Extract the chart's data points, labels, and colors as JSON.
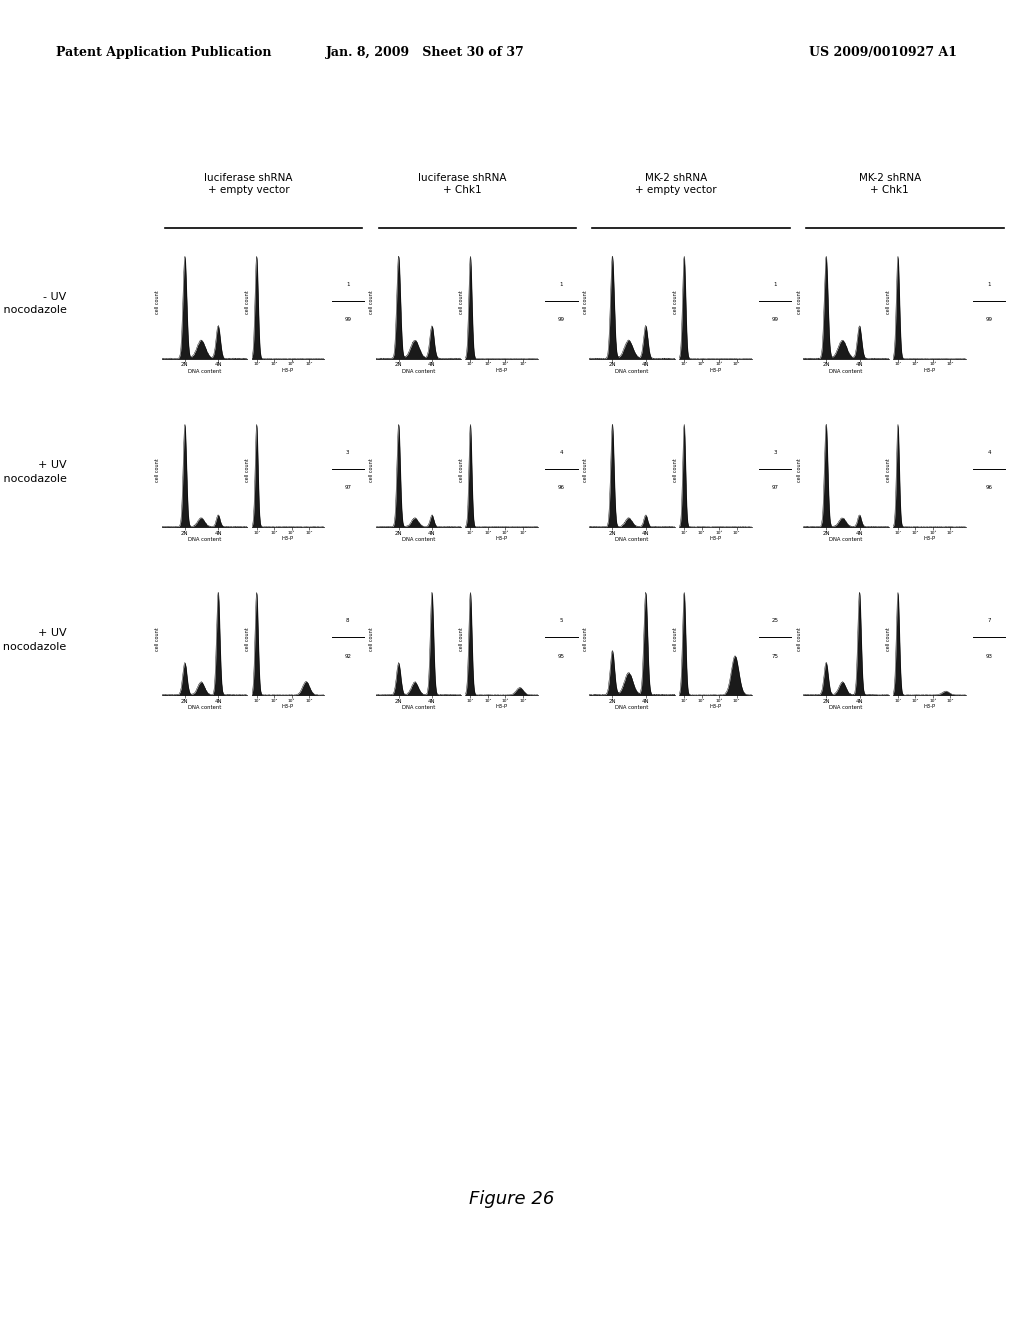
{
  "header_left": "Patent Application Publication",
  "header_mid": "Jan. 8, 2009   Sheet 30 of 37",
  "header_right": "US 2009/0010927 A1",
  "col_headers": [
    "luciferase shRNA\n+ empty vector",
    "luciferase shRNA\n+ Chk1",
    "MK-2 shRNA\n+ empty vector",
    "MK-2 shRNA\n+ Chk1"
  ],
  "row_labels": [
    "- UV\n- nocodazole",
    "+ UV\n- nocodazole",
    "+ UV\n+ nocodazole"
  ],
  "xlabel_dna": "DNA content",
  "xlabel_h3p": "H3-P",
  "figure_label": "Figure 26",
  "background_color": "#ffffff",
  "text_color": "#000000",
  "plot_fill_color": "#1a1a1a"
}
